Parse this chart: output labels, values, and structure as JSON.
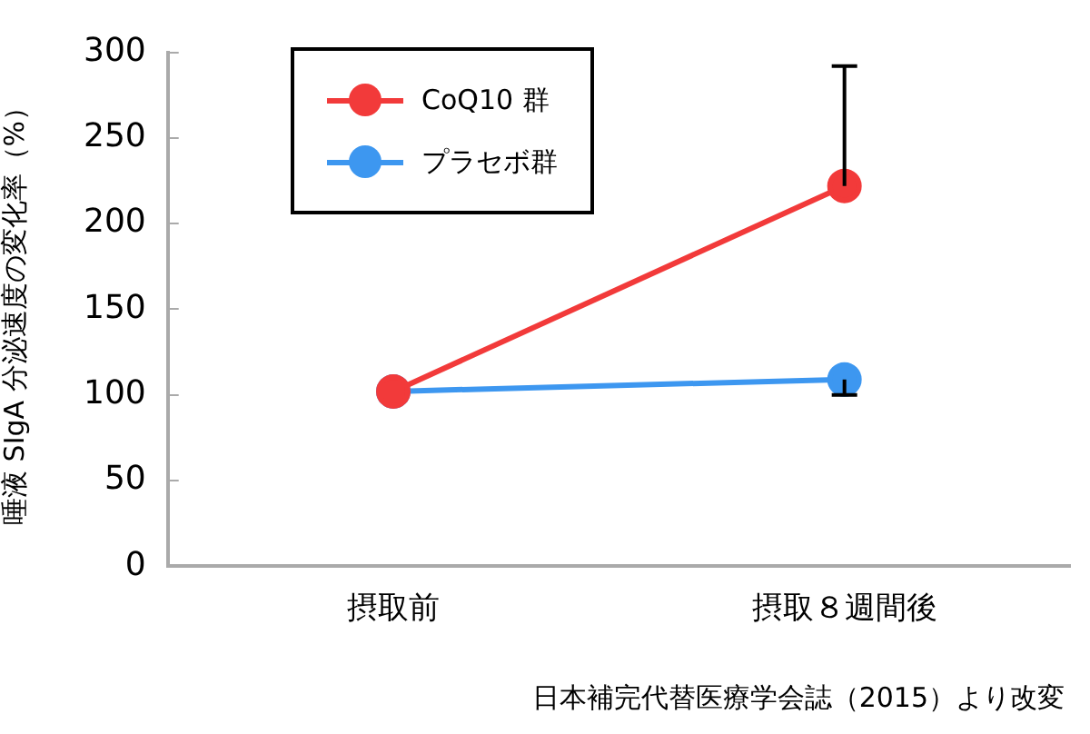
{
  "chart_data": {
    "type": "line",
    "ylabel": "唾液 SIgA 分泌速度の変化率（%）",
    "categories": [
      "摂取前",
      "摂取８週間後"
    ],
    "series": [
      {
        "name": "CoQ10 群",
        "color": "#f23a3a",
        "values": [
          102,
          222
        ],
        "errors": [
          null,
          [
            222,
            292
          ]
        ]
      },
      {
        "name": "プラセボ群",
        "color": "#3d97f0",
        "values": [
          102,
          109
        ],
        "errors": [
          null,
          [
            100,
            109
          ]
        ]
      }
    ],
    "ylim": [
      0,
      300
    ],
    "yticks": [
      0,
      50,
      100,
      150,
      200,
      250,
      300
    ],
    "grid": false,
    "legend": "top left",
    "marker": "circle",
    "line_style": "solid",
    "annotations": [
      "日本補完代替医療学会誌（2015）より改変"
    ]
  }
}
